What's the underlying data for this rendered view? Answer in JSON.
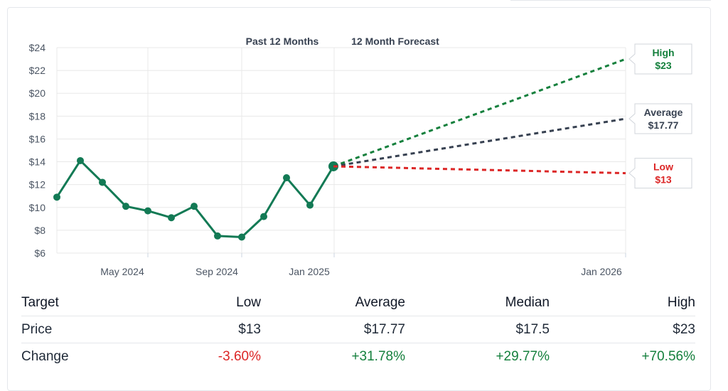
{
  "chart_data": {
    "type": "line",
    "headers": [
      "Past 12 Months",
      "12 Month Forecast"
    ],
    "y_ticks": [
      "$24",
      "$22",
      "$20",
      "$18",
      "$16",
      "$14",
      "$12",
      "$10",
      "$8",
      "$6"
    ],
    "ylim": [
      6,
      24
    ],
    "x_ticks": [
      "May 2024",
      "Sep 2024",
      "Jan 2025",
      "Jan 2026"
    ],
    "series": [
      {
        "values": [
          10.9,
          14.1,
          12.2,
          10.1,
          9.7,
          9.1,
          10.1,
          7.5,
          7.4,
          9.2,
          12.6,
          10.2,
          13.6
        ]
      }
    ],
    "forecast": [
      {
        "name": "High",
        "label": "$23",
        "start": 13.6,
        "end": 23.0,
        "color": "#15803d"
      },
      {
        "name": "Average",
        "label": "$17.77",
        "start": 13.6,
        "end": 17.77,
        "color": "#374151"
      },
      {
        "name": "Low",
        "label": "$13",
        "start": 13.6,
        "end": 13.0,
        "color": "#dc2626"
      }
    ],
    "colors": {
      "line": "#137a55",
      "grid": "#e8e8e8"
    }
  },
  "table": {
    "headers": [
      "Target",
      "Low",
      "Average",
      "Median",
      "High"
    ],
    "rows": [
      {
        "label": "Price",
        "values": [
          "$13",
          "$17.77",
          "$17.5",
          "$23"
        ]
      },
      {
        "label": "Change",
        "values": [
          "-3.60%",
          "+31.78%",
          "+29.77%",
          "+70.56%"
        ]
      }
    ]
  }
}
